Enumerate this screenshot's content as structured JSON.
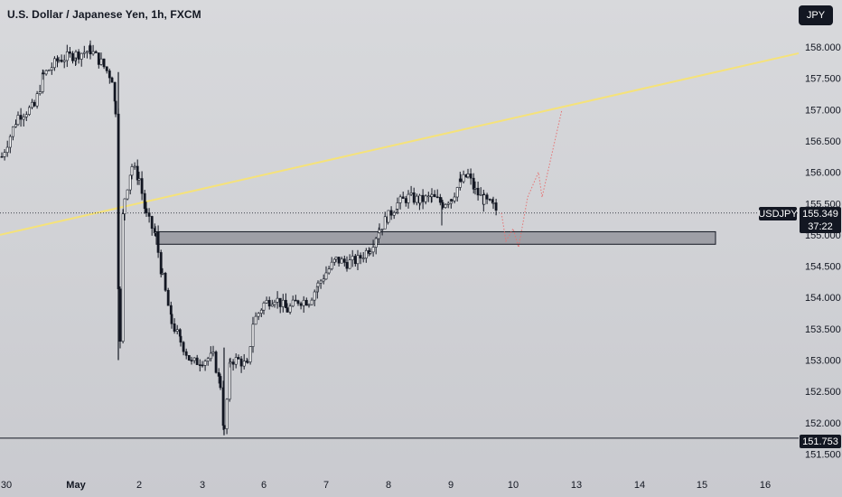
{
  "header": {
    "title": "U.S. Dollar / Japanese Yen, 1h, FXCM",
    "currency_button": "JPY"
  },
  "badges": {
    "symbol": "USDJPY",
    "last_price": "155.349",
    "countdown": "37:22",
    "low_price": "151.753"
  },
  "colors": {
    "background": "#d3d4d8",
    "candle": "#131722",
    "trendline": "#f5e27a",
    "projection": "#e57373",
    "zone_fill": "#8c8e96",
    "badge_bg": "#131722"
  },
  "chart_data": {
    "type": "candlestick",
    "title": "U.S. Dollar / Japanese Yen, 1h, FXCM",
    "symbol": "USDJPY",
    "interval": "1h",
    "y_ticks": [
      "158.000",
      "157.500",
      "157.000",
      "156.500",
      "156.000",
      "155.500",
      "155.000",
      "154.500",
      "154.000",
      "153.500",
      "153.000",
      "152.500",
      "152.000",
      "151.500"
    ],
    "ylim": [
      151.4,
      158.2
    ],
    "x_ticks": [
      "30",
      "May",
      "2",
      "3",
      "6",
      "7",
      "8",
      "9",
      "10",
      "13",
      "14",
      "15",
      "16"
    ],
    "current_price": 155.349,
    "low_line": 151.753,
    "key_points": [
      {
        "x": "30",
        "price": 156.2
      },
      {
        "x": "May",
        "price": 157.9
      },
      {
        "x": "May-1",
        "price": 157.9
      },
      {
        "x": "May-1 spike low",
        "price": 153.0
      },
      {
        "x": "2",
        "price": 156.2
      },
      {
        "x": "3",
        "price": 152.8
      },
      {
        "x": "3 low",
        "price": 151.8
      },
      {
        "x": "6",
        "price": 153.8
      },
      {
        "x": "7",
        "price": 154.6
      },
      {
        "x": "8",
        "price": 155.3
      },
      {
        "x": "9",
        "price": 155.9
      },
      {
        "x": "9 close",
        "price": 155.35
      }
    ],
    "trendline": {
      "from": {
        "x": "29 Apr",
        "price": 155.0
      },
      "to": {
        "x": "16",
        "price": 157.9
      }
    },
    "support_zone": {
      "top": 155.05,
      "bottom": 154.85,
      "from_x": "2",
      "to_x": "15"
    },
    "projection": [
      155.35,
      154.9,
      155.1,
      154.8,
      155.6,
      156.0,
      155.6,
      157.0
    ]
  }
}
